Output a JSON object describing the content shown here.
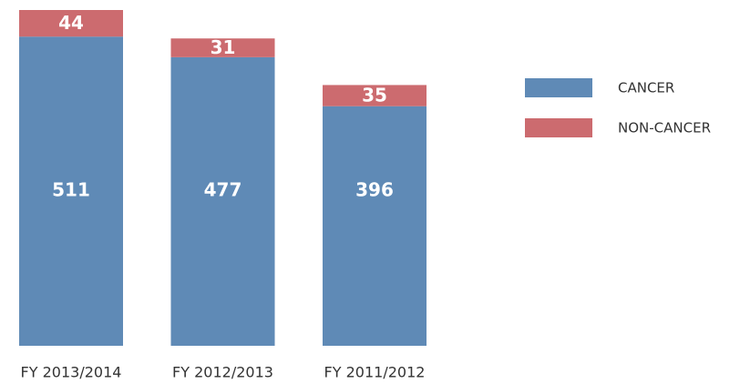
{
  "chart_data": {
    "type": "stacked-bar",
    "categories": [
      "FY 2013/2014",
      "FY 2012/2013",
      "FY 2011/2012"
    ],
    "series": [
      {
        "name": "CANCER",
        "color": "#5f8ab6",
        "values": [
          511,
          477,
          396
        ]
      },
      {
        "name": "NON-CANCER",
        "color": "#cc6b6f",
        "values": [
          44,
          31,
          35
        ]
      }
    ],
    "legend": "right"
  }
}
